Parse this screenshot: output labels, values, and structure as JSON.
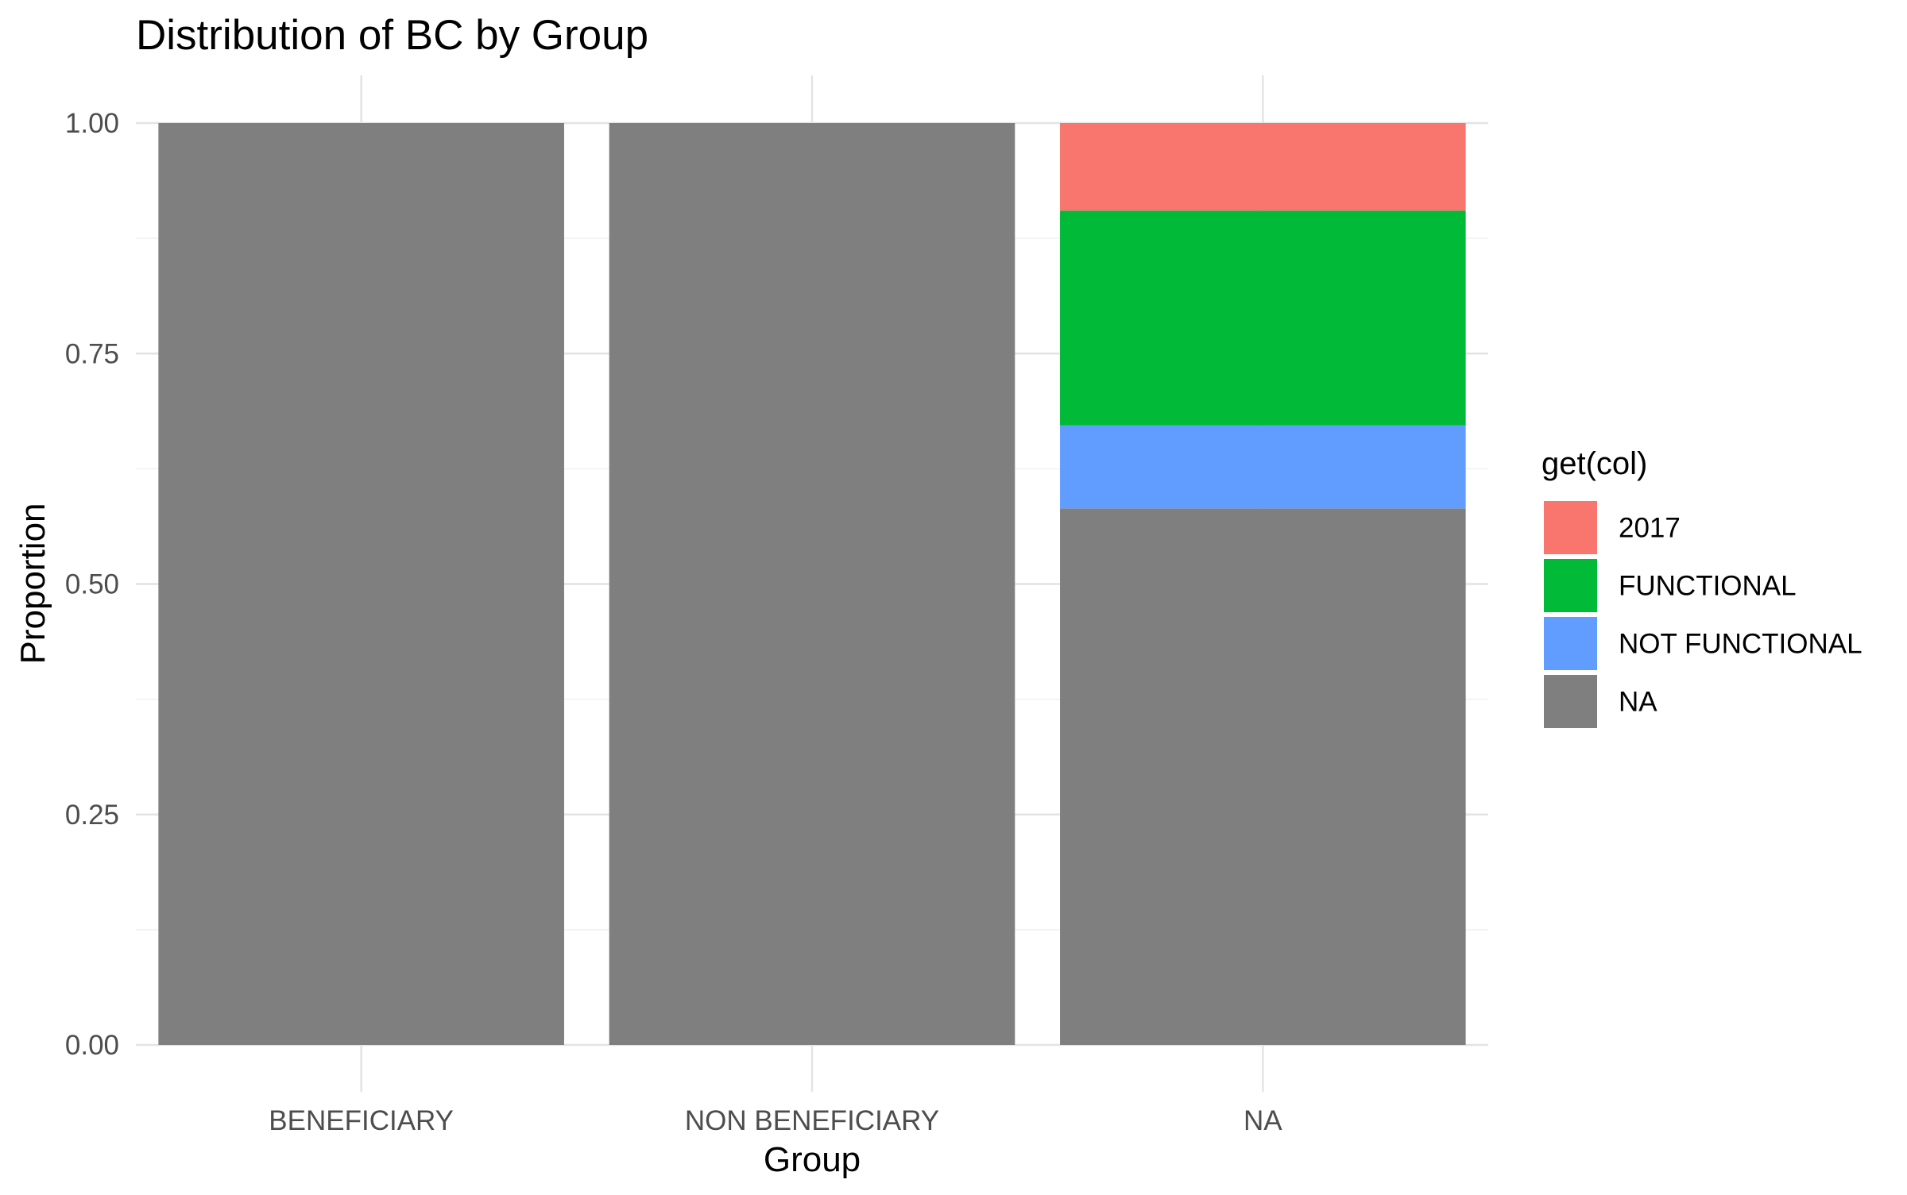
{
  "chart_data": {
    "type": "bar",
    "stacked": true,
    "title": "Distribution of BC by Group",
    "xlabel": "Group",
    "ylabel": "Proportion",
    "categories": [
      "BENEFICIARY",
      "NON BENEFICIARY",
      "NA"
    ],
    "ylim": [
      0,
      1
    ],
    "yticks": [
      "0.00",
      "0.25",
      "0.50",
      "0.75",
      "1.00"
    ],
    "ytick_values": [
      0,
      0.25,
      0.5,
      0.75,
      1.0
    ],
    "grid": true,
    "legend": {
      "title": "get(col)",
      "position": "right"
    },
    "series": [
      {
        "name": "2017",
        "color": "#F8766D",
        "values": [
          0,
          0,
          0.095
        ]
      },
      {
        "name": "FUNCTIONAL",
        "color": "#00BA38",
        "values": [
          0,
          0,
          0.233
        ]
      },
      {
        "name": "NOT FUNCTIONAL",
        "color": "#619CFF",
        "values": [
          0,
          0,
          0.09
        ]
      },
      {
        "name": "NA",
        "color": "#7F7F7F",
        "values": [
          1.0,
          1.0,
          0.582
        ]
      }
    ]
  }
}
